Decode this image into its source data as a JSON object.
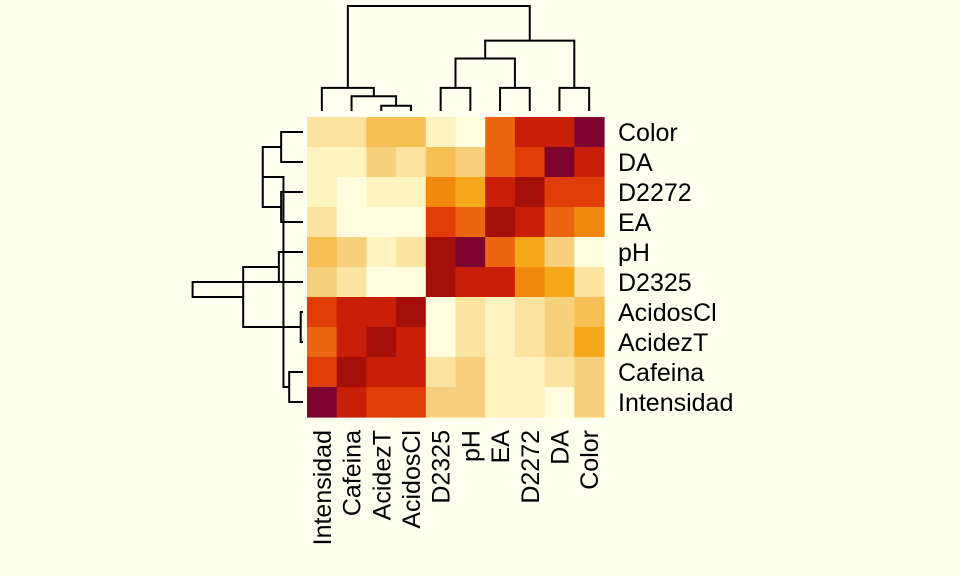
{
  "chart_data": {
    "type": "heatmap",
    "title": "",
    "xlabel": "",
    "ylabel": "",
    "columns": [
      "Intensidad",
      "Cafeina",
      "AcidezT",
      "AcidosCl",
      "D2325",
      "pH",
      "EA",
      "D2272",
      "DA",
      "Color"
    ],
    "rows": [
      "Color",
      "DA",
      "D2272",
      "EA",
      "pH",
      "D2325",
      "AcidosCl",
      "AcidezT",
      "Cafeina",
      "Intensidad"
    ],
    "values": [
      [
        0.15,
        0.15,
        0.35,
        0.35,
        0.08,
        0.03,
        0.62,
        0.82,
        0.82,
        1.0
      ],
      [
        0.05,
        0.08,
        0.25,
        0.18,
        0.35,
        0.25,
        0.68,
        0.75,
        1.0,
        0.82
      ],
      [
        0.08,
        0.02,
        0.06,
        0.06,
        0.55,
        0.45,
        0.8,
        0.9,
        0.75,
        0.75
      ],
      [
        0.15,
        0.02,
        0.02,
        0.02,
        0.75,
        0.68,
        0.88,
        0.8,
        0.68,
        0.55
      ],
      [
        0.35,
        0.25,
        0.08,
        0.15,
        0.88,
        1.0,
        0.68,
        0.45,
        0.25,
        0.03
      ],
      [
        0.25,
        0.15,
        0.02,
        0.02,
        0.88,
        0.82,
        0.82,
        0.55,
        0.45,
        0.15
      ],
      [
        0.75,
        0.82,
        0.82,
        0.9,
        0.02,
        0.15,
        0.05,
        0.15,
        0.25,
        0.35
      ],
      [
        0.68,
        0.82,
        0.9,
        0.82,
        0.02,
        0.15,
        0.05,
        0.15,
        0.25,
        0.45
      ],
      [
        0.75,
        0.9,
        0.82,
        0.82,
        0.15,
        0.25,
        0.05,
        0.08,
        0.15,
        0.25
      ],
      [
        1.0,
        0.82,
        0.75,
        0.75,
        0.25,
        0.25,
        0.08,
        0.08,
        0.03,
        0.25
      ]
    ],
    "color_scale": [
      "#FFFFE0",
      "#FFF3BF",
      "#FCE3A0",
      "#F7D07E",
      "#F5BF54",
      "#F4A81A",
      "#F1890E",
      "#EC6510",
      "#E03C06",
      "#C91F08",
      "#A50F09",
      "#7E0430"
    ],
    "row_dendrogram": {
      "merge": [
        [
          -1,
          -2
        ],
        [
          -3,
          -4
        ],
        [
          -5,
          -6
        ],
        [
          -7,
          -8
        ],
        [
          1,
          2
        ],
        [
          4,
          3
        ],
        [
          -9,
          -10
        ],
        [
          5,
          7
        ],
        [
          8,
          6
        ]
      ],
      "height": [
        0.19,
        0.19,
        0.21,
        0.02,
        0.35,
        0.52,
        0.12,
        0.17,
        0.96
      ]
    },
    "col_dendrogram": {
      "merge": [
        [
          -3,
          -4
        ],
        [
          -5,
          -6
        ],
        [
          -7,
          -8
        ],
        [
          -9,
          -10
        ],
        [
          -2,
          1
        ],
        [
          2,
          3
        ],
        [
          -1,
          5
        ],
        [
          6,
          4
        ],
        [
          8,
          7
        ]
      ],
      "height": [
        0.05,
        0.22,
        0.22,
        0.22,
        0.14,
        0.5,
        0.22,
        0.67,
        1.0
      ]
    }
  }
}
